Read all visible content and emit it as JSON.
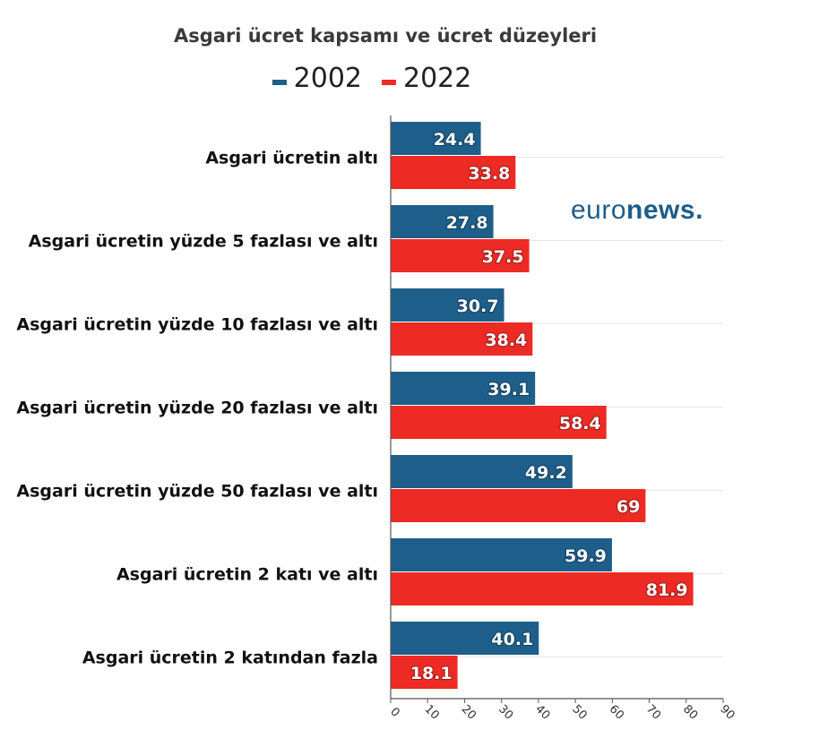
{
  "chart_data": {
    "type": "bar",
    "orientation": "horizontal",
    "title": "Asgari ücret kapsamı ve ücret düzeyleri",
    "categories": [
      "Asgari ücretin altı",
      "Asgari ücretin yüzde 5 fazlası ve altı",
      "Asgari ücretin yüzde 10 fazlası ve altı",
      "Asgari ücretin yüzde 20 fazlası ve altı",
      "Asgari ücretin yüzde 50 fazlası ve altı",
      "Asgari ücretin 2 katı ve altı",
      "Asgari ücretin 2 katından fazla"
    ],
    "series": [
      {
        "name": "2002",
        "color": "#1d5f8a",
        "values": [
          24.4,
          27.8,
          30.7,
          39.1,
          49.2,
          59.9,
          40.1
        ],
        "labels": [
          "24.4",
          "27.8",
          "30.7",
          "39.1",
          "49.2",
          "59.9",
          "40.1"
        ]
      },
      {
        "name": "2022",
        "color": "#ee2a24",
        "values": [
          33.8,
          37.5,
          38.4,
          58.4,
          69,
          81.9,
          18.1
        ],
        "labels": [
          "33.8",
          "37.5",
          "38.4",
          "58.4",
          "69",
          "81.9",
          "18.1"
        ]
      }
    ],
    "xlim": [
      0,
      90
    ],
    "xticks": [
      "0",
      "10",
      "20",
      "30",
      "40",
      "50",
      "60",
      "70",
      "80",
      "90"
    ],
    "grid": true,
    "legend_position": "top-center"
  },
  "logo": {
    "light": "euro",
    "bold": "news",
    "dot": "."
  }
}
